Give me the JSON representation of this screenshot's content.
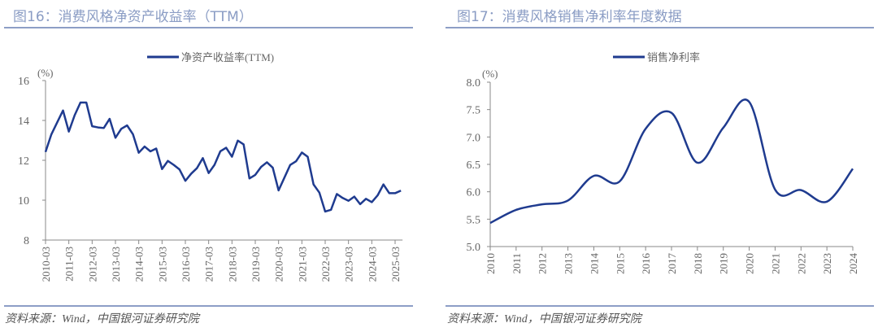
{
  "left": {
    "title": "图16：消费风格净资产收益率（TTM）",
    "source": "资料来源：Wind，中国银河证券研究院"
  },
  "right": {
    "title": "图17：消费风格销售净利率年度数据",
    "source": "资料来源：Wind，中国银河证券研究院"
  },
  "colors": {
    "line": "#1f3b8f",
    "title": "#8a9cc4",
    "rule": "#8d9ec6",
    "axis": "#888888"
  },
  "chart_data": [
    {
      "type": "line",
      "unit_label": "(%)",
      "legend": "top-center",
      "grid": false,
      "ylim": [
        8,
        16
      ],
      "yticks": [
        8,
        10,
        12,
        14,
        16
      ],
      "xtick_labels": [
        "2010-03",
        "2011-03",
        "2012-03",
        "2013-03",
        "2014-03",
        "2015-03",
        "2016-03",
        "2017-03",
        "2018-03",
        "2019-03",
        "2020-03",
        "2021-03",
        "2022-03",
        "2023-03",
        "2024-03",
        "2025-03"
      ],
      "x": [
        "2010-03",
        "2010-06",
        "2010-09",
        "2010-12",
        "2011-03",
        "2011-06",
        "2011-09",
        "2011-12",
        "2012-03",
        "2012-06",
        "2012-09",
        "2012-12",
        "2013-03",
        "2013-06",
        "2013-09",
        "2013-12",
        "2014-03",
        "2014-06",
        "2014-09",
        "2014-12",
        "2015-03",
        "2015-06",
        "2015-09",
        "2015-12",
        "2016-03",
        "2016-06",
        "2016-09",
        "2016-12",
        "2017-03",
        "2017-06",
        "2017-09",
        "2017-12",
        "2018-03",
        "2018-06",
        "2018-09",
        "2018-12",
        "2019-03",
        "2019-06",
        "2019-09",
        "2019-12",
        "2020-03",
        "2020-06",
        "2020-09",
        "2020-12",
        "2021-03",
        "2021-06",
        "2021-09",
        "2021-12",
        "2022-03",
        "2022-06",
        "2022-09",
        "2022-12",
        "2023-03",
        "2023-06",
        "2023-09",
        "2023-12",
        "2024-03",
        "2024-06",
        "2024-09",
        "2024-12",
        "2025-03",
        "2025-06"
      ],
      "series": [
        {
          "name": "净资产收益率(TTM)",
          "values": [
            12.42,
            13.3,
            13.9,
            14.5,
            13.44,
            14.26,
            14.9,
            14.9,
            13.71,
            13.65,
            13.62,
            14.08,
            13.13,
            13.58,
            13.75,
            13.31,
            12.38,
            12.69,
            12.45,
            12.59,
            11.56,
            11.97,
            11.77,
            11.54,
            10.97,
            11.33,
            11.61,
            12.11,
            11.36,
            11.77,
            12.45,
            12.63,
            12.18,
            12.99,
            12.8,
            11.09,
            11.27,
            11.67,
            11.9,
            11.63,
            10.49,
            11.13,
            11.77,
            11.95,
            12.39,
            12.18,
            10.79,
            10.38,
            9.43,
            9.52,
            10.31,
            10.11,
            9.97,
            10.18,
            9.8,
            10.07,
            9.9,
            10.24,
            10.79,
            10.35,
            10.35,
            10.48
          ]
        }
      ]
    },
    {
      "type": "line",
      "smooth": true,
      "unit_label": "(%)",
      "legend": "top-center",
      "grid": false,
      "ylim": [
        5.0,
        8.0
      ],
      "yticks": [
        "5.0",
        "5.5",
        "6.0",
        "6.5",
        "7.0",
        "7.5",
        "8.0"
      ],
      "x": [
        "2010",
        "2011",
        "2012",
        "2013",
        "2014",
        "2015",
        "2016",
        "2017",
        "2018",
        "2019",
        "2020",
        "2021",
        "2022",
        "2023",
        "2024"
      ],
      "series": [
        {
          "name": "销售净利率",
          "values": [
            5.43,
            5.67,
            5.77,
            5.84,
            6.29,
            6.19,
            7.15,
            7.44,
            6.53,
            7.17,
            7.64,
            6.04,
            6.03,
            5.82,
            6.42
          ]
        }
      ]
    }
  ]
}
